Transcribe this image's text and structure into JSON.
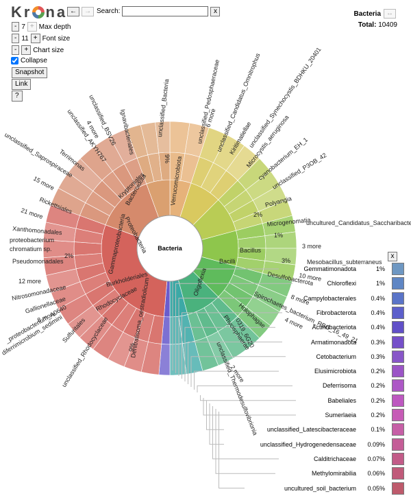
{
  "app": {
    "logo": "Krona"
  },
  "nav": {
    "back": "←",
    "forward": "→"
  },
  "search": {
    "label": "Search:",
    "value": "",
    "clear": "x"
  },
  "controls": {
    "minus": "-",
    "plus": "+",
    "max_depth_value": "7",
    "max_depth_label": "Max depth",
    "font_size_value": "11",
    "font_size_label": "Font size",
    "chart_size_label": "Chart size",
    "collapse_label": "Collapse",
    "collapse_checked": true,
    "snapshot": "Snapshot",
    "link": "Link",
    "help": "?"
  },
  "details": {
    "name": "Bacteria",
    "arrow": "↔",
    "total_label": "Total:",
    "total_value": "10409"
  },
  "chart": {
    "center": "Bacteria"
  },
  "key": {
    "close": "x",
    "items": [
      {
        "label": "Gemmatimonadota",
        "pct": "1%",
        "color": "#6e97c2"
      },
      {
        "label": "Chloroflexi",
        "pct": "1%",
        "color": "#5f86c4"
      },
      {
        "label": "Campylobacterales",
        "pct": "0.4%",
        "color": "#5a74c8"
      },
      {
        "label": "Fibrobacterota",
        "pct": "0.4%",
        "color": "#5c5fcb"
      },
      {
        "label": "Actinobacteriota",
        "pct": "0.4%",
        "color": "#6150c8"
      },
      {
        "label": "Armatimonadota",
        "pct": "0.3%",
        "color": "#7550c9"
      },
      {
        "label": "Cetobacterium",
        "pct": "0.3%",
        "color": "#8856c8"
      },
      {
        "label": "Elusimicrobiota",
        "pct": "0.2%",
        "color": "#9b55c6"
      },
      {
        "label": "Deferrisoma",
        "pct": "0.2%",
        "color": "#ad58c6"
      },
      {
        "label": "Babeliales",
        "pct": "0.2%",
        "color": "#bd58c0"
      },
      {
        "label": "Sumerlaeia",
        "pct": "0.2%",
        "color": "#c65bb6"
      },
      {
        "label": "unclassified_Latescibacteraceae",
        "pct": "0.1%",
        "color": "#c65fa6"
      },
      {
        "label": "unclassified_Hydrogenedensaceae",
        "pct": "0.09%",
        "color": "#c45d97"
      },
      {
        "label": "Calditrichaceae",
        "pct": "0.07%",
        "color": "#c25b88"
      },
      {
        "label": "Methylomirabilia",
        "pct": "0.06%",
        "color": "#c05a7a"
      },
      {
        "label": "uncultured_soil_bacterium",
        "pct": "0.05%",
        "color": "#be5a6c"
      }
    ]
  },
  "ring_labels": {
    "unclassified_bacteria": "unclassified_Bacteria",
    "unclassified_bacteria_pct": "9%",
    "denitratisoma": "Denitratisoma_oestradiolicum",
    "denitratisoma_pct": "9%",
    "unclassified_rhodocyclaceae": "unclassified_Rhodocyclaceae",
    "pseudomonadales": "Pseudomonadales",
    "pseudomonadales_pct": "2%",
    "twelve_more": "12 more",
    "nitrosomonadaceae": "Nitrosomonadaceae",
    "gallionellaceae": "Gallionellaceae",
    "eight_more": "8 more",
    "proteobacterium_a0640": "_proteobacterium_A0640",
    "ferrimicrobium": "diferrimicrobium_sedimini",
    "sulfuritales": "Sulfuritales",
    "xanthomonadales": "Xanthomonadales",
    "proteobacterium": "proteobacterium",
    "chromatium": "chromatium sp.",
    "twenty_one_more": "21 more",
    "rickettsiales": "Rickettsiales",
    "fifteen_more": "15 more",
    "saprospiraceae": "unclassified_Saprospiraceae",
    "terrimonas": "Terrimonas",
    "akyh767": "unclassified_AKYH767",
    "four_more": "4 more",
    "bsv26": "unclassified_BSV26",
    "ignavibacteriales": "Ignavibacteriales",
    "pedosphaeraceae": "unclassified_Pedosphaeraceae",
    "six_more": "6 more",
    "omnitrophus": "unclassified_Candidatus_Omnitrophus",
    "kiritimatiellae": "Kiritimatiellae",
    "synechocystis": "unclassified_Synechocystis_BDHKU_20401",
    "microcystis": "Microcystis_aeruginosa",
    "cyanobacterium_eh1": "cyanobacterium_EH_1",
    "p3ob42": "unclassified_P3OB_42",
    "polyangia": "Polyangia",
    "microgenomatia": "Microgenomatia",
    "saccharibacteria": "uncultured_Candidatus_Saccharibacteria_bacterium",
    "three_more": "3 more",
    "mesobacillus": "Mesobacillus_subterraneus",
    "ten_more": "10 more",
    "desulfobacterota": "Desulfobacterota",
    "spirochaetes": "Spirochaetes_bacterium_RBG_16_49_21",
    "eight_more_b": "8 more",
    "holophagae": "Holophagae",
    "four_more_b": "4 more",
    "phycisphaerae": "Phycisphaerae",
    "g0319": "0319_6G20",
    "two_more": "2 more",
    "thermodesulfovibrionia": "unclassified_Thermodesulfovibrionia",
    "bacilli": "Bacilli",
    "bacillus": "Bacillus",
    "oligoflexia": "Oligoflexia",
    "gammaproteobacteria": "Gammaproteobacteria",
    "proteobacteria": "Proteobacteria",
    "burkholderiales": "Burkholderiales",
    "rhodocyclaceae": "Rhodocyclaceae",
    "bacteroidota": "Bacteroidota",
    "kryptoniales": "Kryptoniales",
    "verrucomicrobiota": "Verrucomicrobiota",
    "one_pct": "1%",
    "two_pct": "2%",
    "three_pct": "3%"
  }
}
